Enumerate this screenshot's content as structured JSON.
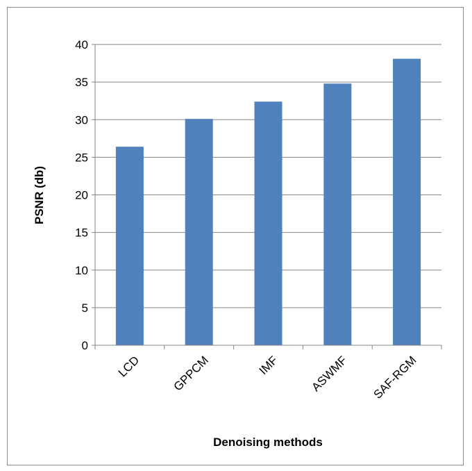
{
  "chart_data": {
    "type": "bar",
    "categories": [
      "LCD",
      "GPPCM",
      "IMF",
      "ASWMF",
      "SAF-RGM"
    ],
    "values": [
      26.4,
      30.1,
      32.4,
      34.8,
      38.1
    ],
    "xlabel": "Denoising methods",
    "ylabel": "PSNR (db)",
    "ylim": [
      0,
      40
    ],
    "yticks": [
      0,
      5,
      10,
      15,
      20,
      25,
      30,
      35,
      40
    ],
    "grid": true,
    "bar_color": "#4F81BD",
    "grid_color": "#868686"
  }
}
